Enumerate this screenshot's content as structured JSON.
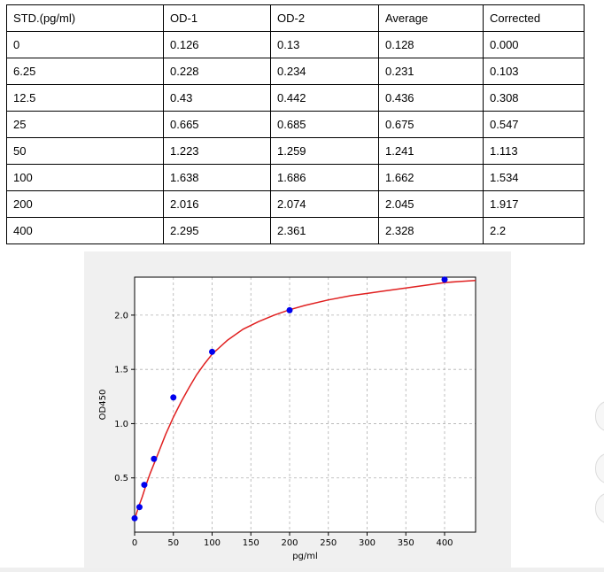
{
  "table": {
    "headers": [
      "STD.(pg/ml)",
      "OD-1",
      "OD-2",
      "Average",
      "Corrected"
    ],
    "rows": [
      [
        "0",
        "0.126",
        "0.13",
        "0.128",
        "0.000"
      ],
      [
        "6.25",
        "0.228",
        "0.234",
        "0.231",
        "0.103"
      ],
      [
        "12.5",
        "0.43",
        "0.442",
        "0.436",
        "0.308"
      ],
      [
        "25",
        "0.665",
        "0.685",
        "0.675",
        "0.547"
      ],
      [
        "50",
        "1.223",
        "1.259",
        "1.241",
        "1.113"
      ],
      [
        "100",
        "1.638",
        "1.686",
        "1.662",
        "1.534"
      ],
      [
        "200",
        "2.016",
        "2.074",
        "2.045",
        "1.917"
      ],
      [
        "400",
        "2.295",
        "2.361",
        "2.328",
        "2.2"
      ]
    ]
  },
  "chart_data": {
    "type": "scatter",
    "title": "",
    "xlabel": "pg/ml",
    "ylabel": "OD450",
    "xlim": [
      0,
      440
    ],
    "ylim": [
      0,
      2.35
    ],
    "xticks": [
      0,
      50,
      100,
      150,
      200,
      250,
      300,
      350,
      400
    ],
    "yticks": [
      0.5,
      1.0,
      1.5,
      2.0
    ],
    "grid": true,
    "series": [
      {
        "x": [
          0,
          6.25,
          12.5,
          25,
          50,
          100,
          200,
          400
        ],
        "y": [
          0.128,
          0.231,
          0.436,
          0.675,
          1.241,
          1.662,
          2.045,
          2.328
        ],
        "marker_color": "#0000ee"
      }
    ],
    "fit_curve": {
      "x": [
        0,
        5,
        10,
        15,
        20,
        30,
        40,
        50,
        60,
        70,
        80,
        90,
        100,
        120,
        140,
        160,
        180,
        200,
        220,
        250,
        280,
        300,
        320,
        350,
        380,
        400,
        420,
        440
      ],
      "y": [
        0.12,
        0.23,
        0.33,
        0.44,
        0.54,
        0.72,
        0.9,
        1.06,
        1.2,
        1.33,
        1.45,
        1.55,
        1.64,
        1.77,
        1.87,
        1.94,
        2.0,
        2.05,
        2.09,
        2.14,
        2.18,
        2.2,
        2.22,
        2.25,
        2.28,
        2.3,
        2.31,
        2.32
      ],
      "color": "#e02020"
    }
  }
}
